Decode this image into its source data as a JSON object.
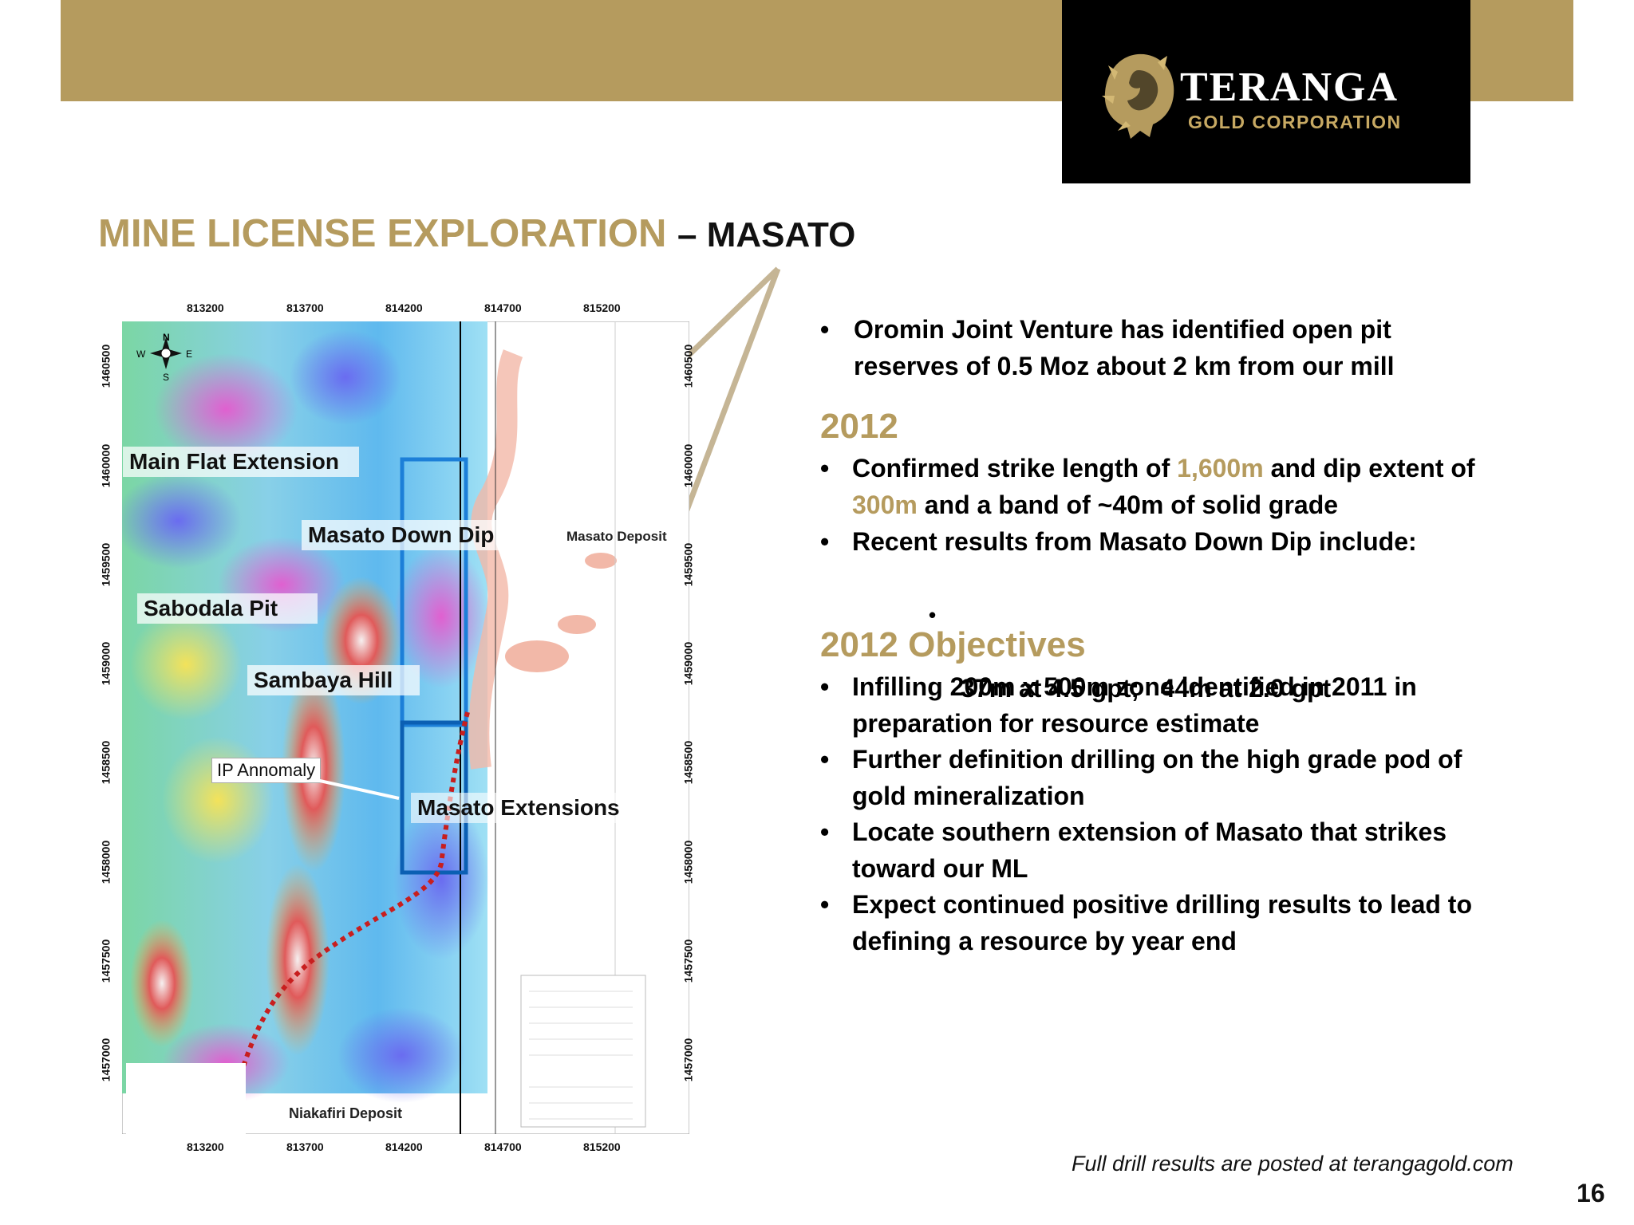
{
  "header": {
    "logo": {
      "name": "TERANGA",
      "subtitle": "GOLD CORPORATION"
    },
    "title_main": "MINE LICENSE EXPLORATION",
    "title_suffix": "– MASATO"
  },
  "map": {
    "x_ticks": [
      "813200",
      "813700",
      "814200",
      "814700",
      "815200"
    ],
    "y_ticks": [
      "1460500",
      "1460000",
      "1459500",
      "1459000",
      "1458500",
      "1458000",
      "1457500",
      "1457000"
    ],
    "labels": {
      "main_flat_extension": "Main Flat Extension",
      "masato_down_dip": "Masato Down Dip",
      "sabodala_pit": "Sabodala Pit",
      "sambaya_hill": "Sambaya Hill",
      "ip_annomaly": "IP Annomaly",
      "masato_extensions": "Masato Extensions",
      "masato_deposit": "Masato Deposit",
      "niakafiri_deposit": "Niakafiri Deposit"
    },
    "compass": {
      "n": "N",
      "s": "S",
      "e": "E",
      "w": "W"
    }
  },
  "content": {
    "intro_bullet": {
      "line1": "Oromin Joint Venture has identified open pit",
      "line2": "reserves of 0.5 Moz about 2 km from our mill"
    },
    "section_2012": {
      "heading": "2012",
      "b1_pre": "Confirmed strike length of ",
      "b1_val1": "1,600m",
      "b1_mid": " and dip extent of",
      "b1_val2": "300m",
      "b1_post": " and a band of ~40m of solid grade",
      "b2": "Recent results from Masato Down Dip include:",
      "sub": "37m at 4.5 gpt;   44m at 2.0 gpt"
    },
    "section_objectives": {
      "heading": "2012 Objectives",
      "items": [
        [
          "Infilling 200m x 500m zone identified in 2011 in",
          "preparation for resource estimate"
        ],
        [
          "Further definition drilling on the high grade pod of",
          "gold mineralization"
        ],
        [
          "Locate southern extension of Masato that strikes",
          "toward our ML"
        ],
        [
          "Expect continued positive drilling results to lead to",
          "defining a resource by year end"
        ]
      ]
    },
    "bullet_char": "•"
  },
  "footer": {
    "note": "Full drill results are posted at terangagold.com",
    "page": "16"
  },
  "colors": {
    "gold": "#b59b5e",
    "black": "#000000"
  }
}
